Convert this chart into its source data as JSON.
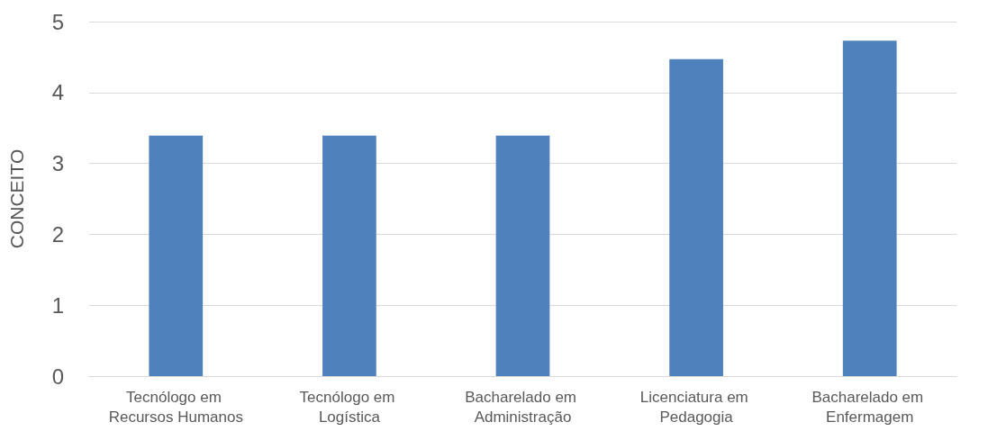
{
  "chart_data": {
    "type": "bar",
    "ylabel": "CONCEITO",
    "categories": [
      "Tecnólogo em Recursos Humanos",
      "Tecnólogo em Logística",
      "Bacharelado em Administração",
      "Licenciatura em Pedagogia",
      "Bacharelado em Enfermagem"
    ],
    "values": [
      3.39,
      3.39,
      3.39,
      4.47,
      4.73
    ],
    "color": "#4f81bd",
    "ylim": [
      0,
      5
    ],
    "yticks": [
      0,
      1,
      2,
      3,
      4,
      5
    ],
    "grid": "y"
  }
}
